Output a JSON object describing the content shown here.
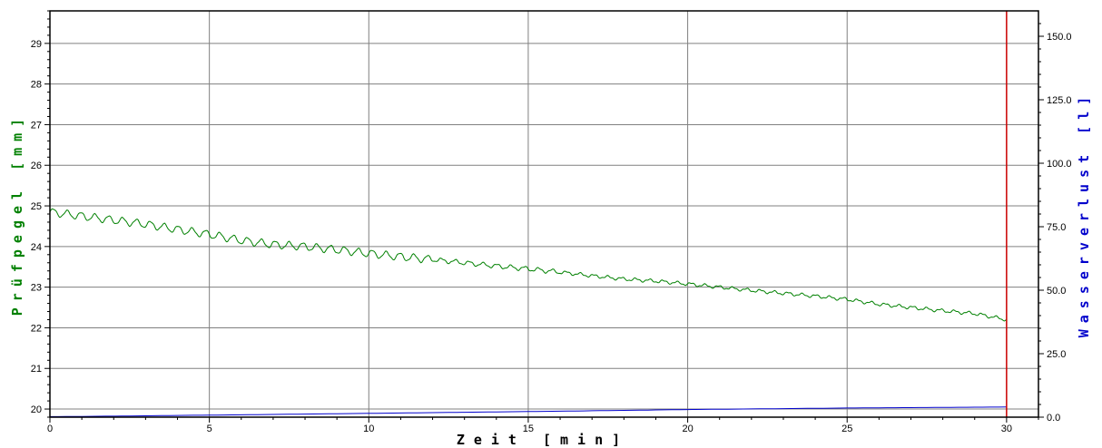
{
  "chart_data": {
    "type": "line",
    "xlabel": "Zeit [min]",
    "ylabel_left": "Prüfpegel [mm]",
    "ylabel_right": "Wasserverlust [l]",
    "xlim": [
      0,
      31
    ],
    "ylim_left": [
      19.8,
      29.8
    ],
    "ylim_right": [
      0,
      160
    ],
    "x_ticks": [
      "0",
      "5",
      "10",
      "15",
      "20",
      "25",
      "30"
    ],
    "y_left_ticks": [
      "20",
      "21",
      "22",
      "23",
      "24",
      "25",
      "26",
      "27",
      "28",
      "29"
    ],
    "y_right_ticks": [
      "0.0",
      "25.0",
      "50.0",
      "75.0",
      "100.0",
      "125.0",
      "150.0"
    ],
    "grid": true,
    "marker_line_x": 30,
    "series": [
      {
        "axis": "left",
        "x": [
          0,
          1,
          2,
          3,
          4,
          5,
          6,
          7,
          8,
          9,
          10,
          11,
          12,
          13,
          14,
          15,
          16,
          17,
          18,
          19,
          20,
          21,
          22,
          23,
          24,
          25,
          26,
          27,
          28,
          29,
          30
        ],
        "values": [
          24.85,
          24.75,
          24.65,
          24.55,
          24.42,
          24.3,
          24.15,
          24.05,
          24.0,
          23.92,
          23.83,
          23.75,
          23.68,
          23.6,
          23.52,
          23.45,
          23.37,
          23.28,
          23.2,
          23.15,
          23.08,
          23.0,
          22.92,
          22.85,
          22.78,
          22.7,
          22.58,
          22.5,
          22.42,
          22.35,
          22.2
        ]
      },
      {
        "axis": "right",
        "x": [
          0,
          2,
          5,
          10,
          15,
          20,
          25,
          30
        ],
        "values": [
          0.2,
          0.4,
          0.8,
          1.5,
          2.2,
          3.0,
          3.6,
          4.0
        ]
      }
    ],
    "colors": {
      "left_series": "#008000",
      "right_series": "#0000cc",
      "marker_line": "#cc0000",
      "grid": "#808080"
    }
  }
}
